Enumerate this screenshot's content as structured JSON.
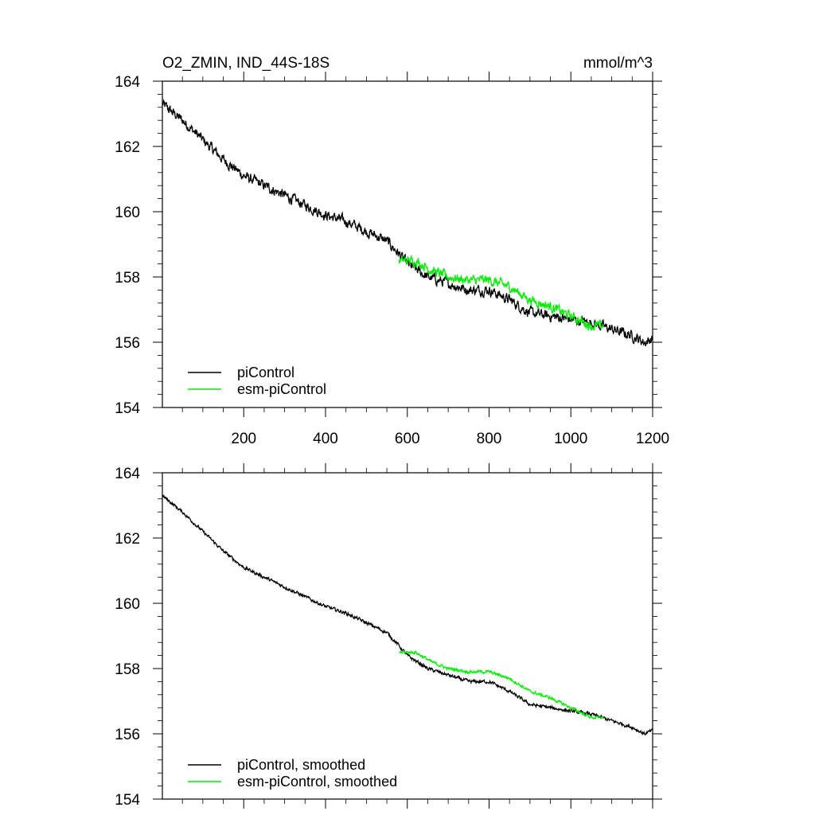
{
  "figure": {
    "title_left": "O2_ZMIN, IND_44S-18S",
    "title_right": "mmol/m^3"
  },
  "colors": {
    "piControl": "#000000",
    "esm_piControl": "#00ee00",
    "frame": "#000000"
  },
  "chart_data": [
    {
      "type": "line",
      "panel": "raw",
      "xlim": [
        1,
        1200
      ],
      "ylim": [
        154,
        164
      ],
      "x_ticks": [
        200,
        400,
        600,
        800,
        1000,
        1200
      ],
      "x_tick_labels": [
        "200",
        "400",
        "600",
        "800",
        "1000",
        "1200"
      ],
      "y_ticks": [
        154,
        156,
        158,
        160,
        162,
        164
      ],
      "y_tick_labels": [
        "154",
        "156",
        "158",
        "160",
        "162",
        "164"
      ],
      "legend_position": "bottom-left",
      "series": [
        {
          "name": "piControl",
          "color": "#000000",
          "noise": 0.28,
          "x": [
            1,
            50,
            100,
            150,
            200,
            250,
            300,
            350,
            400,
            450,
            500,
            550,
            580,
            600,
            650,
            700,
            750,
            800,
            850,
            900,
            950,
            1000,
            1050,
            1100,
            1150,
            1180,
            1200
          ],
          "y": [
            163.3,
            162.8,
            162.2,
            161.6,
            161.1,
            160.8,
            160.5,
            160.2,
            159.9,
            159.7,
            159.4,
            159.1,
            158.7,
            158.4,
            158.0,
            157.8,
            157.6,
            157.6,
            157.3,
            156.9,
            156.8,
            156.7,
            156.6,
            156.4,
            156.2,
            156.0,
            156.1
          ]
        },
        {
          "name": "esm-piControl",
          "color": "#00ee00",
          "noise": 0.26,
          "x": [
            580,
            620,
            660,
            700,
            750,
            800,
            850,
            900,
            950,
            1000,
            1050,
            1080
          ],
          "y": [
            158.5,
            158.5,
            158.2,
            158.0,
            157.9,
            157.9,
            157.7,
            157.3,
            157.1,
            156.8,
            156.5,
            156.5
          ]
        }
      ]
    },
    {
      "type": "line",
      "panel": "smoothed",
      "xlim": [
        1,
        1200
      ],
      "ylim": [
        154,
        164
      ],
      "x_ticks": [
        200,
        400,
        600,
        800,
        1000,
        1200
      ],
      "y_ticks": [
        154,
        156,
        158,
        160,
        162,
        164
      ],
      "y_tick_labels": [
        "154",
        "156",
        "158",
        "160",
        "162",
        "164"
      ],
      "legend_position": "bottom-left",
      "series": [
        {
          "name": "piControl, smoothed",
          "color": "#000000",
          "noise": 0.09,
          "x": [
            1,
            50,
            100,
            150,
            200,
            250,
            300,
            350,
            400,
            450,
            500,
            550,
            580,
            600,
            650,
            700,
            750,
            800,
            850,
            900,
            950,
            1000,
            1050,
            1100,
            1150,
            1180,
            1200
          ],
          "y": [
            163.3,
            162.8,
            162.2,
            161.6,
            161.1,
            160.8,
            160.5,
            160.2,
            159.9,
            159.7,
            159.4,
            159.1,
            158.7,
            158.4,
            158.0,
            157.8,
            157.6,
            157.6,
            157.3,
            156.9,
            156.8,
            156.7,
            156.6,
            156.4,
            156.2,
            156.0,
            156.1
          ]
        },
        {
          "name": "esm-piControl, smoothed",
          "color": "#00ee00",
          "noise": 0.08,
          "x": [
            580,
            620,
            660,
            700,
            750,
            800,
            850,
            900,
            950,
            1000,
            1050,
            1080
          ],
          "y": [
            158.5,
            158.5,
            158.2,
            158.0,
            157.9,
            157.9,
            157.7,
            157.3,
            157.1,
            156.8,
            156.5,
            156.5
          ]
        }
      ]
    }
  ]
}
